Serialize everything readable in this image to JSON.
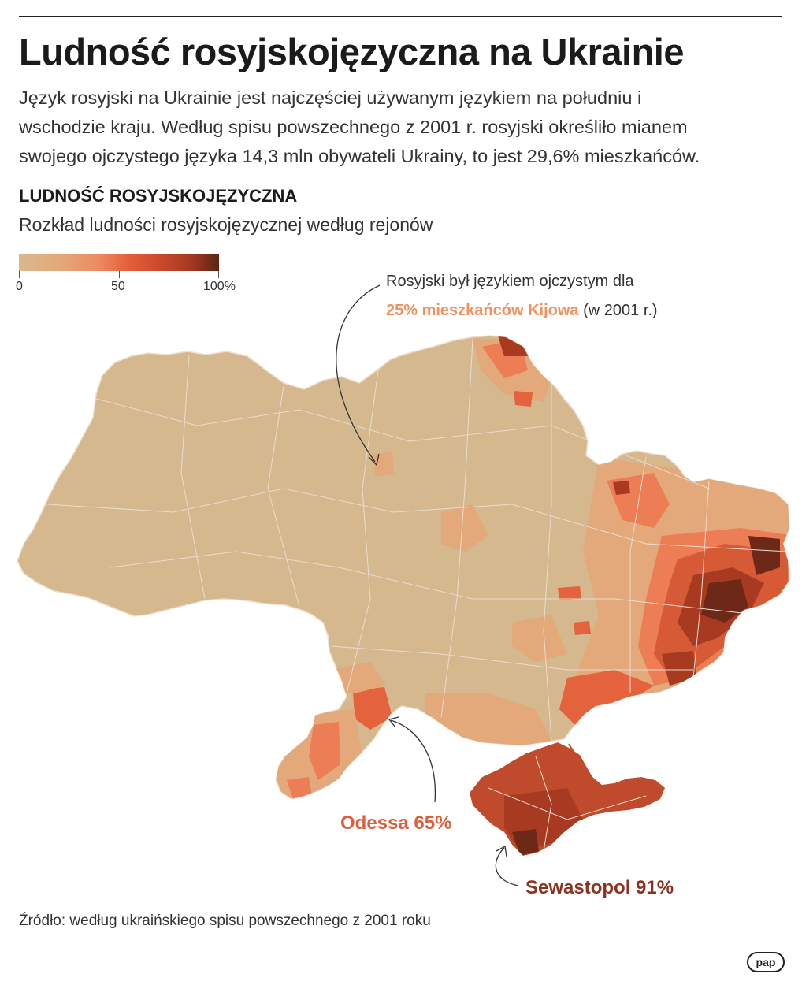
{
  "title": "Ludność rosyjskojęzyczna na Ukrainie",
  "lead": [
    "Język rosyjski na Ukrainie jest najczęściej używanym językiem na południu i",
    "wschodzie kraju. Według spisu powszechnego z 2001 r. rosyjski określiło mianem",
    "swojego ojczystego języka 14,3 mln obywateli Ukrainy, to jest 29,6% mieszkańców."
  ],
  "section_title": "LUDNOŚĆ ROSYJSKOJĘZYCZNA",
  "section_subtitle": "Rozkład ludności rosyjskojęzycznej według rejonów",
  "legend": {
    "labels": [
      "0",
      "50",
      "100%"
    ],
    "colors": [
      "#d8b88e",
      "#ed8a60",
      "#5e2415"
    ]
  },
  "annotations": {
    "kiev_line1": "Rosyjski był językiem ojczystym dla",
    "kiev_highlight": "25% mieszkańców Kijowa",
    "kiev_suffix": " (w 2001 r.)",
    "odessa": "Odessa 65%",
    "sevastopol": "Sewastopol 91%"
  },
  "colors": {
    "base": "#d6b88f",
    "light": "#e3a97a",
    "mid": "#ec7d55",
    "strong": "#d65a36",
    "dark": "#a83a22",
    "darkest": "#6e2818",
    "border": "#ece0cf"
  },
  "source": "Źródło: według ukraińskiego spisu powszechnego z 2001 roku",
  "logo": "pap"
}
